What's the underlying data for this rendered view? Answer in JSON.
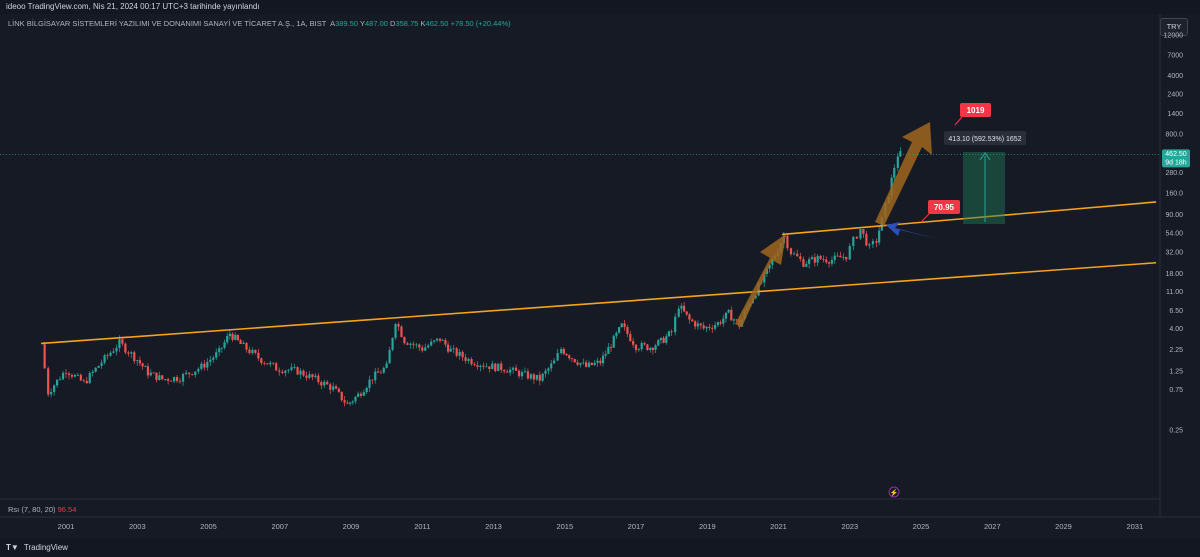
{
  "header": {
    "caption": "ideoo TradingView.com, Nis 21, 2024 00:17 UTC+3 tarihinde yayınlandı",
    "symbol": "LİNK BİLGİSAYAR SİSTEMLERİ YAZILIMI VE DONANIMI SANAYİ VE TİCARET A.Ş., 1A, BIST",
    "open_label": "A",
    "open": "389.50",
    "high_label": "Y",
    "high": "487.00",
    "low_label": "D",
    "low": "358.75",
    "close_label": "K",
    "close": "462.50",
    "change": "+78.50 (+20.44%)",
    "currency": "TRY"
  },
  "price_badge": {
    "price": "462.50",
    "countdown": "9d 18h"
  },
  "annotations": {
    "target_label": "1019",
    "breakout_label": "70.95",
    "measure_text": "413.10 (592.53%) 1652"
  },
  "indicator": {
    "label": "Rsı (7, 80, 20)",
    "value": "96.54"
  },
  "footer": {
    "brand": "TradingView"
  },
  "colors": {
    "up": "#26a69a",
    "down": "#ef5350",
    "trendline": "#f7a21b",
    "arrow_up": "#a0661e",
    "arrow_blue": "#2c4fb8",
    "label_red": "#f23645"
  },
  "chart_data": {
    "type": "candlestick",
    "scale": "log",
    "ylim": [
      0.15,
      12000
    ],
    "y_ticks": [
      "12000",
      "7000",
      "4000",
      "2400",
      "1400",
      "800.0",
      "480.0",
      "280.0",
      "160.0",
      "90.00",
      "54.00",
      "32.00",
      "18.00",
      "11.00",
      "6.50",
      "4.00",
      "2.25",
      "1.25",
      "0.75",
      "0.25"
    ],
    "x_ticks": [
      "2001",
      "2003",
      "2005",
      "2007",
      "2009",
      "2011",
      "2013",
      "2015",
      "2017",
      "2019",
      "2021",
      "2023",
      "2025",
      "2027",
      "2029",
      "2031"
    ],
    "path_points": [
      [
        2000.3,
        2.6
      ],
      [
        2000.5,
        0.7
      ],
      [
        2001.0,
        1.3
      ],
      [
        2001.5,
        0.9
      ],
      [
        2002.0,
        1.6
      ],
      [
        2002.5,
        2.7
      ],
      [
        2003.0,
        1.7
      ],
      [
        2003.3,
        1.2
      ],
      [
        2003.7,
        1.0
      ],
      [
        2004.2,
        1.05
      ],
      [
        2004.8,
        1.4
      ],
      [
        2005.3,
        2.1
      ],
      [
        2005.6,
        3.5
      ],
      [
        2005.9,
        2.6
      ],
      [
        2006.4,
        1.8
      ],
      [
        2006.9,
        1.35
      ],
      [
        2007.5,
        1.25
      ],
      [
        2008.0,
        1.0
      ],
      [
        2008.5,
        0.78
      ],
      [
        2008.9,
        0.5
      ],
      [
        2009.2,
        0.65
      ],
      [
        2009.6,
        1.05
      ],
      [
        2010.0,
        1.4
      ],
      [
        2010.25,
        5.0
      ],
      [
        2010.5,
        2.9
      ],
      [
        2011.0,
        2.3
      ],
      [
        2011.5,
        3.0
      ],
      [
        2011.8,
        2.2
      ],
      [
        2012.3,
        1.7
      ],
      [
        2012.8,
        1.45
      ],
      [
        2013.3,
        1.35
      ],
      [
        2013.8,
        1.15
      ],
      [
        2014.3,
        1.0
      ],
      [
        2014.7,
        1.6
      ],
      [
        2014.9,
        2.3
      ],
      [
        2015.2,
        1.8
      ],
      [
        2015.6,
        1.4
      ],
      [
        2016.0,
        1.6
      ],
      [
        2016.3,
        2.6
      ],
      [
        2016.6,
        4.3
      ],
      [
        2017.0,
        2.5
      ],
      [
        2017.4,
        2.4
      ],
      [
        2017.7,
        2.8
      ],
      [
        2018.0,
        3.6
      ],
      [
        2018.2,
        7.5
      ],
      [
        2018.5,
        5.0
      ],
      [
        2018.9,
        4.0
      ],
      [
        2019.3,
        4.6
      ],
      [
        2019.6,
        6.0
      ],
      [
        2019.9,
        4.4
      ],
      [
        2020.2,
        8.5
      ],
      [
        2020.6,
        16.0
      ],
      [
        2020.9,
        30.0
      ],
      [
        2021.15,
        50.0
      ],
      [
        2021.35,
        32.0
      ],
      [
        2021.7,
        24.0
      ],
      [
        2022.1,
        27.0
      ],
      [
        2022.5,
        26.0
      ],
      [
        2022.9,
        29.0
      ],
      [
        2023.1,
        44.0
      ],
      [
        2023.3,
        60.0
      ],
      [
        2023.55,
        36.0
      ],
      [
        2023.75,
        44.0
      ],
      [
        2023.9,
        78.0
      ],
      [
        2024.1,
        160.0
      ],
      [
        2024.25,
        330.0
      ],
      [
        2024.35,
        460.0
      ],
      [
        2024.42,
        462.5
      ]
    ],
    "trendlines": [
      {
        "from": [
          2000.3,
          2.65
        ],
        "to": [
          2031.6,
          24.0
        ]
      },
      {
        "from": [
          2021.1,
          52.0
        ],
        "to": [
          2031.6,
          126.0
        ]
      }
    ]
  }
}
